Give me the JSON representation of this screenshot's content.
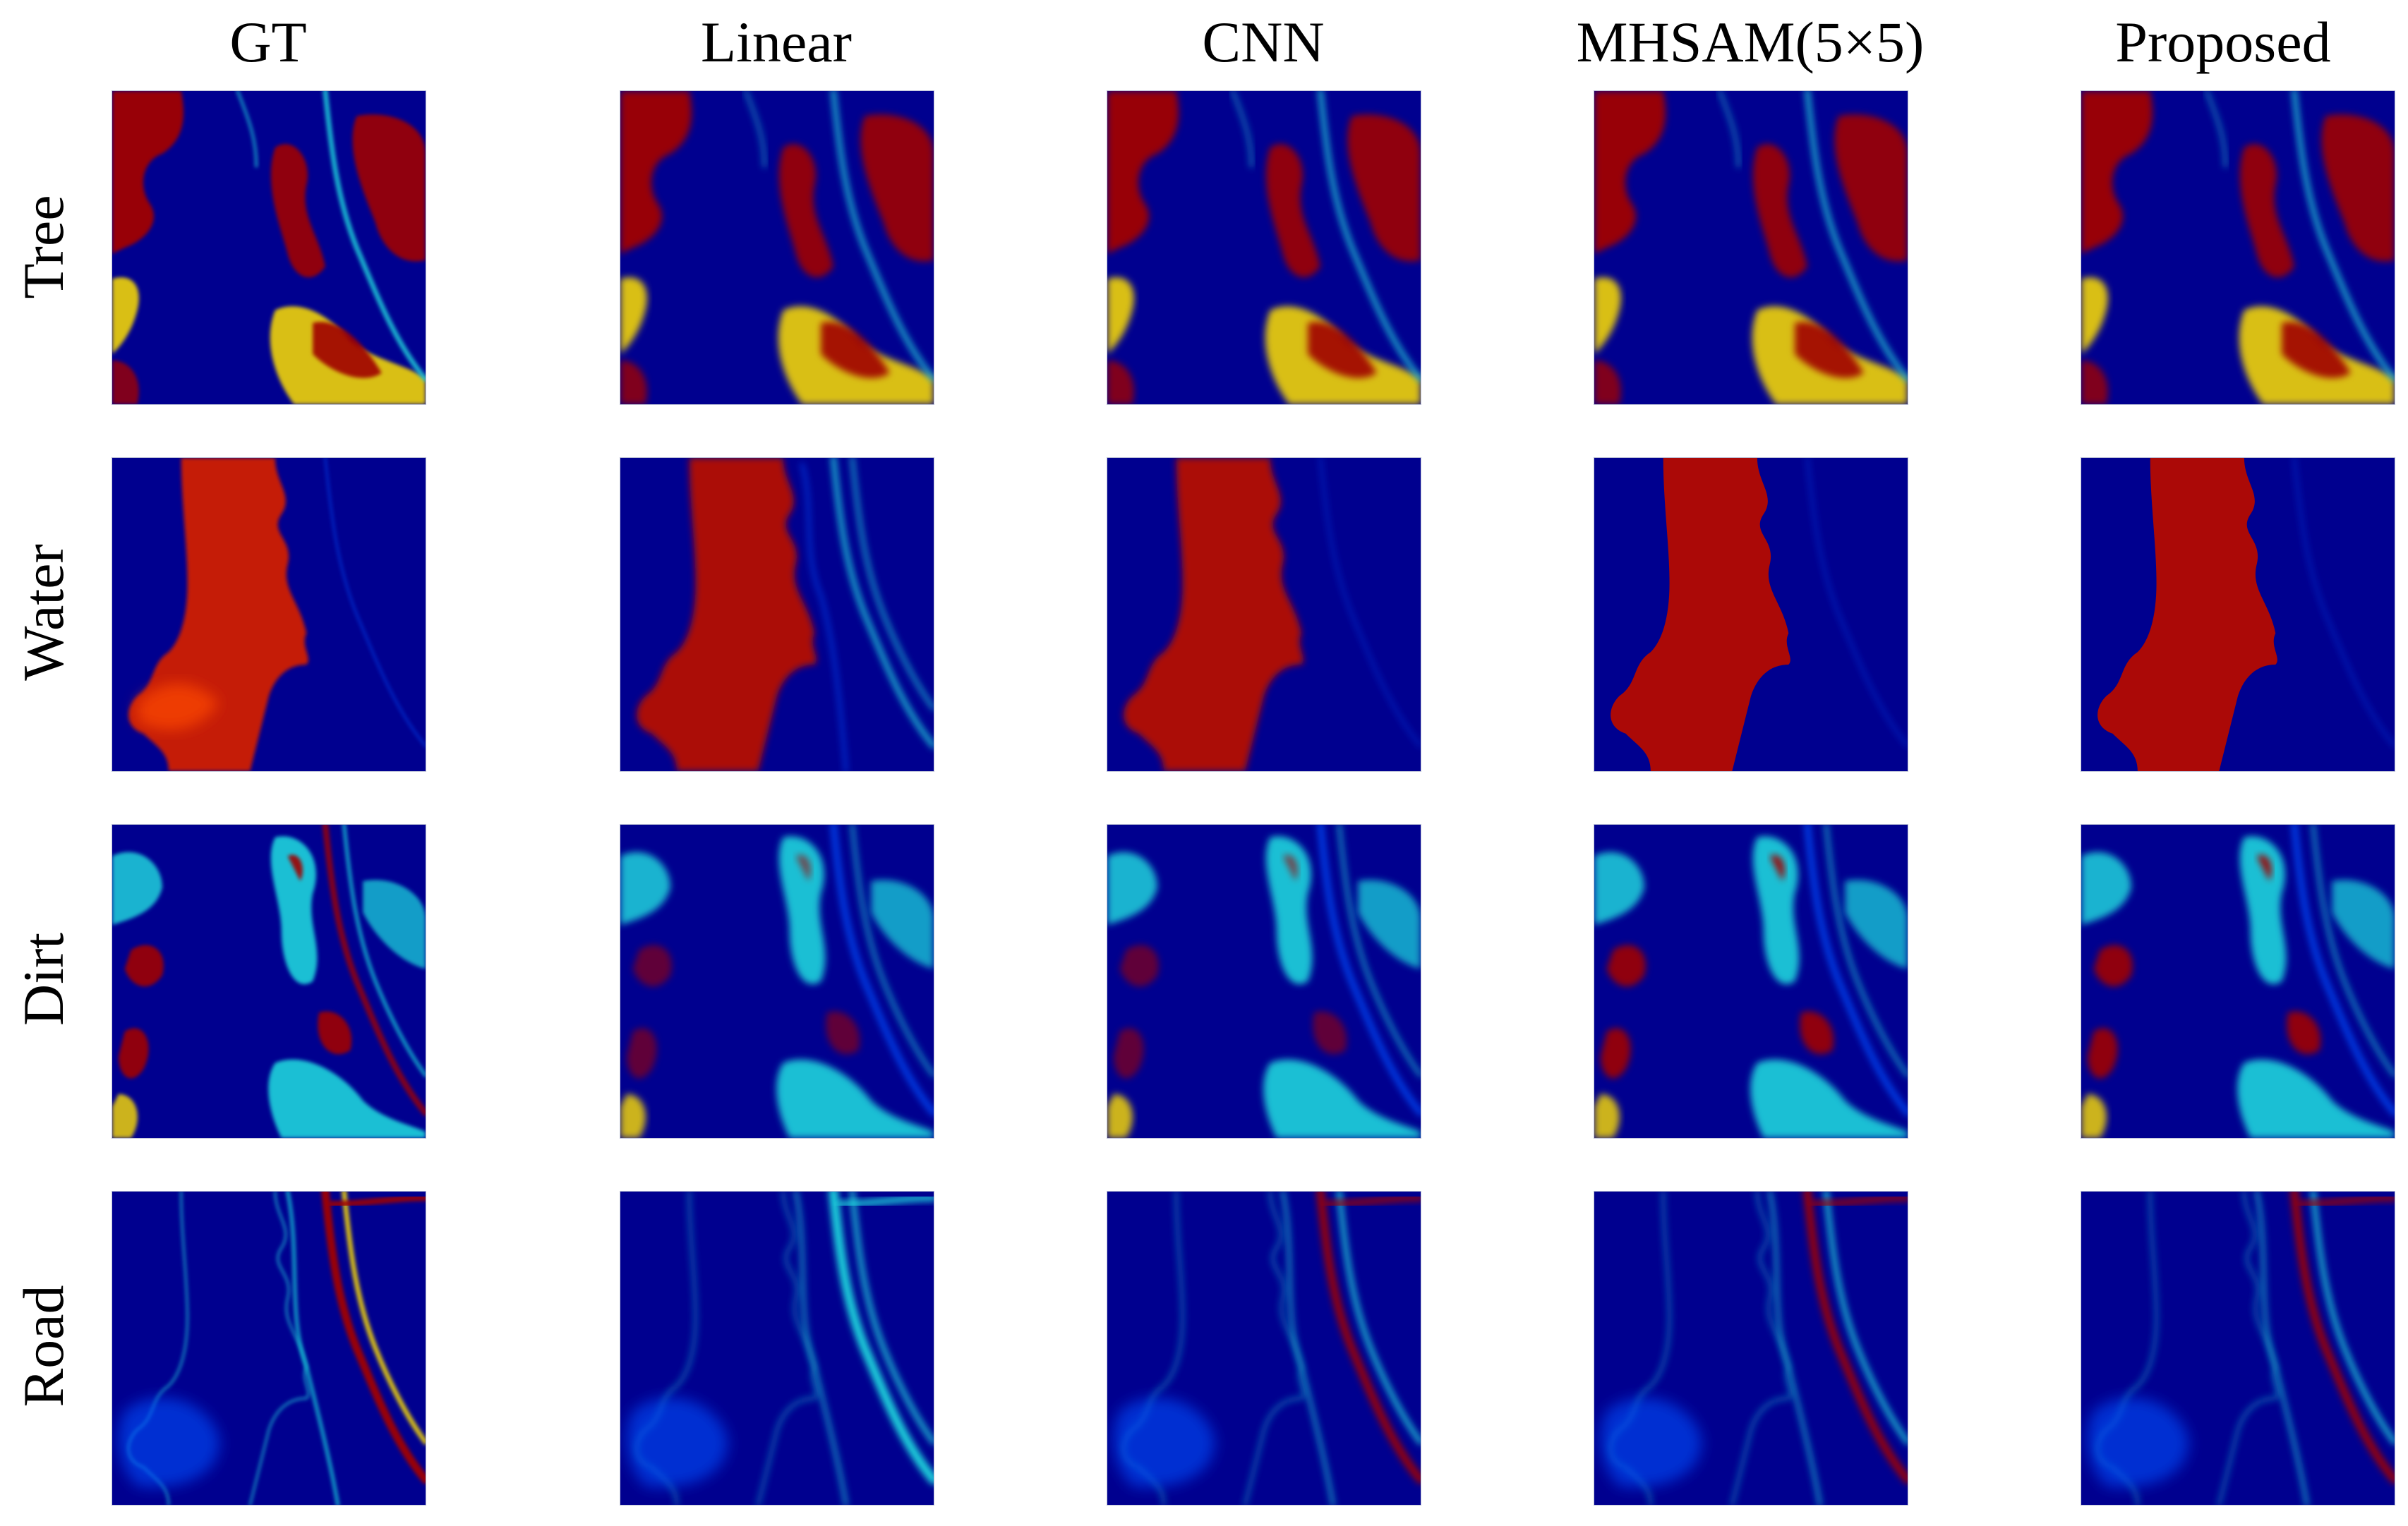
{
  "figure": {
    "columns": [
      {
        "key": "gt",
        "label": "GT"
      },
      {
        "key": "linear",
        "label": "Linear"
      },
      {
        "key": "cnn",
        "label": "CNN"
      },
      {
        "key": "mhsam",
        "label": "MHSAM(5×5)"
      },
      {
        "key": "proposed",
        "label": "Proposed"
      }
    ],
    "rows": [
      {
        "key": "tree",
        "label": "Tree"
      },
      {
        "key": "water",
        "label": "Water"
      },
      {
        "key": "dirt",
        "label": "Dirt"
      },
      {
        "key": "road",
        "label": "Road"
      }
    ],
    "colormap": {
      "name": "jet",
      "low": "#00008f",
      "mid_low": "#0050ff",
      "mid": "#1fe0e0",
      "mid_high": "#ffe000",
      "high": "#a00000"
    }
  }
}
